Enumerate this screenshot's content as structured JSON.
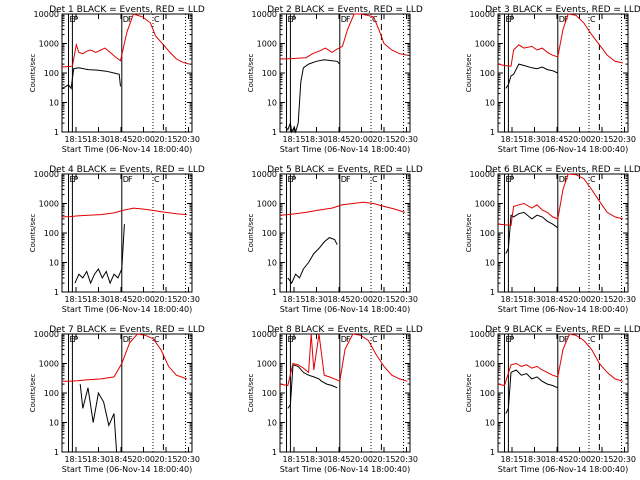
{
  "figure": {
    "shared": {
      "xlabel": "Start Time (06-Nov-14 18:00:40)",
      "ylabel": "Counts/sec",
      "xticks": [
        "18:15",
        "18:30",
        "18:45",
        "20:00",
        "20:15",
        "20:30"
      ],
      "yticks": [
        "1",
        "10",
        "100",
        "1000",
        "10000"
      ],
      "event_letters": [
        "E",
        "P",
        "D",
        "F",
        "C"
      ],
      "colors": {
        "events": "#000000",
        "lld": "#e00000"
      }
    }
  },
  "chart_data": [
    {
      "type": "line",
      "title": "Det 1 BLACK = Events, RED = LLD",
      "xlabel": "Start Time (06-Nov-14 18:00:40)",
      "ylabel": "Counts/sec",
      "yscale": "log",
      "ylim": [
        1,
        10000
      ],
      "x_ticks": [
        "18:15",
        "18:30",
        "18:45",
        "20:00",
        "20:15",
        "20:30"
      ],
      "series": [
        {
          "name": "Events",
          "color": "#000000",
          "x": [
            0.0,
            0.03,
            0.05,
            0.07,
            0.09,
            0.13,
            0.2,
            0.27,
            0.34,
            0.4,
            0.44,
            0.45
          ],
          "y": [
            30,
            35,
            40,
            30,
            140,
            150,
            130,
            125,
            115,
            100,
            90,
            35
          ]
        },
        {
          "name": "LLD",
          "color": "#e00000",
          "x": [
            0.0,
            0.04,
            0.08,
            0.11,
            0.13,
            0.16,
            0.19,
            0.22,
            0.26,
            0.3,
            0.33,
            0.37,
            0.41,
            0.45,
            0.5,
            0.55,
            0.62,
            0.68,
            0.72,
            0.78,
            0.83,
            0.88,
            0.93,
            0.98
          ],
          "y": [
            160,
            165,
            170,
            900,
            500,
            450,
            550,
            600,
            500,
            600,
            700,
            500,
            350,
            260,
            2500,
            10000,
            8000,
            5000,
            1800,
            900,
            500,
            300,
            230,
            200
          ]
        }
      ],
      "markers": [
        {
          "label": "E",
          "x": 0.05
        },
        {
          "label": "P",
          "x": 0.08
        },
        {
          "label": "D",
          "x": 0.46
        },
        {
          "label": "F",
          "x": 0.5
        },
        {
          "label": "C",
          "x": 0.7
        }
      ]
    },
    {
      "type": "line",
      "title": "Det 2 BLACK = Events, RED = LLD",
      "xlabel": "Start Time (06-Nov-14 18:00:40)",
      "ylabel": "Counts/sec",
      "yscale": "log",
      "ylim": [
        1,
        10000
      ],
      "x_ticks": [
        "18:15",
        "18:30",
        "18:45",
        "20:00",
        "20:15",
        "20:30"
      ],
      "series": [
        {
          "name": "Events",
          "color": "#000000",
          "x": [
            0.04,
            0.06,
            0.08,
            0.09,
            0.11,
            0.12,
            0.14,
            0.16,
            0.18,
            0.22,
            0.28,
            0.34,
            0.4,
            0.44,
            0.46
          ],
          "y": [
            1.5,
            1.2,
            2,
            1,
            1.5,
            1,
            2,
            50,
            150,
            200,
            250,
            280,
            260,
            250,
            200
          ]
        },
        {
          "name": "LLD",
          "color": "#e00000",
          "x": [
            0.0,
            0.05,
            0.1,
            0.15,
            0.2,
            0.25,
            0.3,
            0.35,
            0.4,
            0.44,
            0.48,
            0.52,
            0.57,
            0.62,
            0.67,
            0.72,
            0.76,
            0.8,
            0.86,
            0.92,
            0.98
          ],
          "y": [
            300,
            300,
            310,
            320,
            330,
            450,
            550,
            700,
            500,
            650,
            800,
            3000,
            10000,
            10000,
            9000,
            8000,
            3000,
            1000,
            600,
            450,
            400
          ]
        }
      ],
      "markers": [
        {
          "label": "E",
          "x": 0.05
        },
        {
          "label": "P",
          "x": 0.08
        },
        {
          "label": "D",
          "x": 0.46
        },
        {
          "label": "F",
          "x": 0.5
        },
        {
          "label": "C",
          "x": 0.7
        }
      ]
    },
    {
      "type": "line",
      "title": "Det 3 BLACK = Events, RED = LLD",
      "xlabel": "Start Time (06-Nov-14 18:00:40)",
      "ylabel": "Counts/sec",
      "yscale": "log",
      "ylim": [
        1,
        10000
      ],
      "x_ticks": [
        "18:15",
        "18:30",
        "18:45",
        "20:00",
        "20:15",
        "20:30"
      ],
      "series": [
        {
          "name": "Events",
          "color": "#000000",
          "x": [
            0.06,
            0.08,
            0.1,
            0.12,
            0.16,
            0.2,
            0.26,
            0.3,
            0.34,
            0.38,
            0.42,
            0.46
          ],
          "y": [
            30,
            40,
            80,
            90,
            200,
            180,
            150,
            140,
            160,
            130,
            120,
            100
          ]
        },
        {
          "name": "LLD",
          "color": "#e00000",
          "x": [
            0.0,
            0.05,
            0.1,
            0.12,
            0.16,
            0.2,
            0.26,
            0.3,
            0.34,
            0.38,
            0.42,
            0.46,
            0.5,
            0.54,
            0.6,
            0.66,
            0.72,
            0.78,
            0.84,
            0.9,
            0.96
          ],
          "y": [
            200,
            180,
            170,
            600,
            900,
            700,
            800,
            600,
            700,
            500,
            400,
            350,
            3000,
            10000,
            9000,
            5000,
            2000,
            900,
            400,
            250,
            220
          ]
        }
      ],
      "markers": [
        {
          "label": "E",
          "x": 0.05
        },
        {
          "label": "P",
          "x": 0.08
        },
        {
          "label": "D",
          "x": 0.46
        },
        {
          "label": "F",
          "x": 0.5
        },
        {
          "label": "C",
          "x": 0.7
        }
      ]
    },
    {
      "type": "line",
      "title": "Det 4 BLACK = Events, RED = LLD",
      "xlabel": "Start Time (06-Nov-14 18:00:40)",
      "ylabel": "Counts/sec",
      "yscale": "log",
      "ylim": [
        1,
        10000
      ],
      "x_ticks": [
        "18:15",
        "18:30",
        "18:45",
        "20:00",
        "20:15",
        "20:30"
      ],
      "series": [
        {
          "name": "Events",
          "color": "#000000",
          "x": [
            0.1,
            0.13,
            0.16,
            0.19,
            0.22,
            0.25,
            0.28,
            0.31,
            0.34,
            0.37,
            0.4,
            0.43,
            0.46,
            0.48
          ],
          "y": [
            2,
            4,
            3,
            5,
            2,
            4,
            6,
            3,
            5,
            2,
            4,
            3,
            6,
            200
          ]
        },
        {
          "name": "LLD",
          "color": "#e00000",
          "x": [
            0.0,
            0.06,
            0.12,
            0.2,
            0.3,
            0.4,
            0.48,
            0.55,
            0.62,
            0.68,
            0.74,
            0.8,
            0.88,
            0.96
          ],
          "y": [
            350,
            360,
            380,
            400,
            420,
            480,
            600,
            700,
            650,
            600,
            550,
            500,
            450,
            420
          ]
        }
      ],
      "markers": [
        {
          "label": "E",
          "x": 0.05
        },
        {
          "label": "P",
          "x": 0.08
        },
        {
          "label": "D",
          "x": 0.46
        },
        {
          "label": "F",
          "x": 0.5
        },
        {
          "label": "C",
          "x": 0.7
        }
      ]
    },
    {
      "type": "line",
      "title": "Det 5 BLACK = Events, RED = LLD",
      "xlabel": "Start Time (06-Nov-14 18:00:40)",
      "ylabel": "Counts/sec",
      "yscale": "log",
      "ylim": [
        1,
        10000
      ],
      "x_ticks": [
        "18:15",
        "18:30",
        "18:45",
        "20:00",
        "20:15",
        "20:30"
      ],
      "series": [
        {
          "name": "Events",
          "color": "#000000",
          "x": [
            0.06,
            0.09,
            0.12,
            0.15,
            0.18,
            0.22,
            0.26,
            0.3,
            0.34,
            0.38,
            0.42,
            0.44
          ],
          "y": [
            3,
            2,
            4,
            3,
            6,
            10,
            20,
            30,
            50,
            70,
            60,
            40
          ]
        },
        {
          "name": "LLD",
          "color": "#e00000",
          "x": [
            0.0,
            0.06,
            0.12,
            0.2,
            0.3,
            0.4,
            0.48,
            0.56,
            0.64,
            0.72,
            0.8,
            0.88,
            0.96
          ],
          "y": [
            400,
            420,
            450,
            500,
            600,
            700,
            900,
            1000,
            1100,
            1000,
            800,
            650,
            500
          ]
        }
      ],
      "markers": [
        {
          "label": "E",
          "x": 0.05
        },
        {
          "label": "P",
          "x": 0.08
        },
        {
          "label": "D",
          "x": 0.46
        },
        {
          "label": "F",
          "x": 0.5
        },
        {
          "label": "C",
          "x": 0.7
        }
      ]
    },
    {
      "type": "line",
      "title": "Det 6 BLACK = Events, RED = LLD",
      "xlabel": "Start Time (06-Nov-14 18:00:40)",
      "ylabel": "Counts/sec",
      "yscale": "log",
      "ylim": [
        1,
        10000
      ],
      "x_ticks": [
        "18:15",
        "18:30",
        "18:45",
        "20:00",
        "20:15",
        "20:30"
      ],
      "series": [
        {
          "name": "Events",
          "color": "#000000",
          "x": [
            0.06,
            0.08,
            0.1,
            0.12,
            0.16,
            0.2,
            0.26,
            0.3,
            0.34,
            0.38,
            0.42,
            0.46
          ],
          "y": [
            20,
            30,
            400,
            350,
            450,
            500,
            300,
            400,
            350,
            250,
            200,
            150
          ]
        },
        {
          "name": "LLD",
          "color": "#e00000",
          "x": [
            0.0,
            0.05,
            0.1,
            0.12,
            0.16,
            0.2,
            0.26,
            0.3,
            0.34,
            0.38,
            0.42,
            0.46,
            0.5,
            0.54,
            0.6,
            0.66,
            0.72,
            0.78,
            0.84,
            0.9,
            0.96
          ],
          "y": [
            200,
            190,
            180,
            800,
            900,
            1000,
            700,
            900,
            600,
            500,
            350,
            300,
            3000,
            10000,
            9500,
            7000,
            3000,
            1200,
            500,
            350,
            300
          ]
        }
      ],
      "markers": [
        {
          "label": "E",
          "x": 0.05
        },
        {
          "label": "P",
          "x": 0.08
        },
        {
          "label": "D",
          "x": 0.46
        },
        {
          "label": "F",
          "x": 0.5
        },
        {
          "label": "C",
          "x": 0.7
        }
      ]
    },
    {
      "type": "line",
      "title": "Det 7 BLACK = Events, RED = LLD",
      "xlabel": "Start Time (06-Nov-14 18:00:40)",
      "ylabel": "Counts/sec",
      "yscale": "log",
      "ylim": [
        1,
        10000
      ],
      "x_ticks": [
        "18:15",
        "18:30",
        "18:45",
        "20:00",
        "20:15",
        "20:30"
      ],
      "series": [
        {
          "name": "Events",
          "color": "#000000",
          "x": [
            0.14,
            0.16,
            0.2,
            0.24,
            0.28,
            0.32,
            0.36,
            0.4,
            0.42
          ],
          "y": [
            200,
            30,
            150,
            10,
            100,
            50,
            8,
            20,
            1
          ]
        },
        {
          "name": "LLD",
          "color": "#e00000",
          "x": [
            0.0,
            0.06,
            0.12,
            0.2,
            0.3,
            0.4,
            0.46,
            0.52,
            0.58,
            0.64,
            0.7,
            0.76,
            0.82,
            0.88,
            0.96
          ],
          "y": [
            250,
            250,
            260,
            280,
            300,
            350,
            1000,
            5000,
            10000,
            9000,
            7000,
            3000,
            800,
            400,
            300
          ]
        }
      ],
      "markers": [
        {
          "label": "E",
          "x": 0.05
        },
        {
          "label": "P",
          "x": 0.08
        },
        {
          "label": "D",
          "x": 0.46
        },
        {
          "label": "F",
          "x": 0.5
        },
        {
          "label": "C",
          "x": 0.7
        }
      ]
    },
    {
      "type": "line",
      "title": "Det 8 BLACK = Events, RED = LLD",
      "xlabel": "Start Time (06-Nov-14 18:00:40)",
      "ylabel": "Counts/sec",
      "yscale": "log",
      "ylim": [
        1,
        10000
      ],
      "x_ticks": [
        "18:15",
        "18:30",
        "18:45",
        "20:00",
        "20:15",
        "20:30"
      ],
      "series": [
        {
          "name": "Events",
          "color": "#000000",
          "x": [
            0.06,
            0.08,
            0.1,
            0.14,
            0.18,
            0.22,
            0.26,
            0.3,
            0.32,
            0.36,
            0.4,
            0.44
          ],
          "y": [
            30,
            40,
            900,
            800,
            500,
            400,
            350,
            300,
            250,
            200,
            180,
            150
          ]
        },
        {
          "name": "LLD",
          "color": "#e00000",
          "x": [
            0.0,
            0.06,
            0.1,
            0.14,
            0.18,
            0.22,
            0.24,
            0.26,
            0.3,
            0.34,
            0.38,
            0.42,
            0.46,
            0.5,
            0.56,
            0.62,
            0.68,
            0.74,
            0.8,
            0.86,
            0.92,
            0.98
          ],
          "y": [
            200,
            180,
            1000,
            900,
            700,
            500,
            10000,
            600,
            10000,
            400,
            350,
            300,
            250,
            3000,
            10000,
            9000,
            6000,
            2000,
            800,
            400,
            300,
            250
          ]
        }
      ],
      "markers": [
        {
          "label": "E",
          "x": 0.05
        },
        {
          "label": "P",
          "x": 0.08
        },
        {
          "label": "D",
          "x": 0.46
        },
        {
          "label": "F",
          "x": 0.5
        },
        {
          "label": "C",
          "x": 0.7
        }
      ]
    },
    {
      "type": "line",
      "title": "Det 9 BLACK = Events, RED = LLD",
      "xlabel": "Start Time (06-Nov-14 18:00:40)",
      "ylabel": "Counts/sec",
      "yscale": "log",
      "ylim": [
        1,
        10000
      ],
      "x_ticks": [
        "18:15",
        "18:30",
        "18:45",
        "20:00",
        "20:15",
        "20:30"
      ],
      "series": [
        {
          "name": "Events",
          "color": "#000000",
          "x": [
            0.06,
            0.08,
            0.1,
            0.14,
            0.18,
            0.22,
            0.26,
            0.3,
            0.34,
            0.38,
            0.42,
            0.46
          ],
          "y": [
            20,
            30,
            500,
            600,
            400,
            450,
            300,
            350,
            250,
            200,
            180,
            150
          ]
        },
        {
          "name": "LLD",
          "color": "#e00000",
          "x": [
            0.0,
            0.05,
            0.1,
            0.14,
            0.18,
            0.22,
            0.26,
            0.3,
            0.34,
            0.38,
            0.42,
            0.46,
            0.5,
            0.55,
            0.6,
            0.66,
            0.72,
            0.78,
            0.84,
            0.9,
            0.96
          ],
          "y": [
            200,
            180,
            900,
            1000,
            800,
            900,
            700,
            800,
            600,
            500,
            400,
            350,
            3000,
            10000,
            9000,
            6000,
            3000,
            1000,
            500,
            300,
            250
          ]
        }
      ],
      "markers": [
        {
          "label": "E",
          "x": 0.05
        },
        {
          "label": "P",
          "x": 0.08
        },
        {
          "label": "D",
          "x": 0.46
        },
        {
          "label": "F",
          "x": 0.5
        },
        {
          "label": "C",
          "x": 0.7
        }
      ]
    }
  ]
}
